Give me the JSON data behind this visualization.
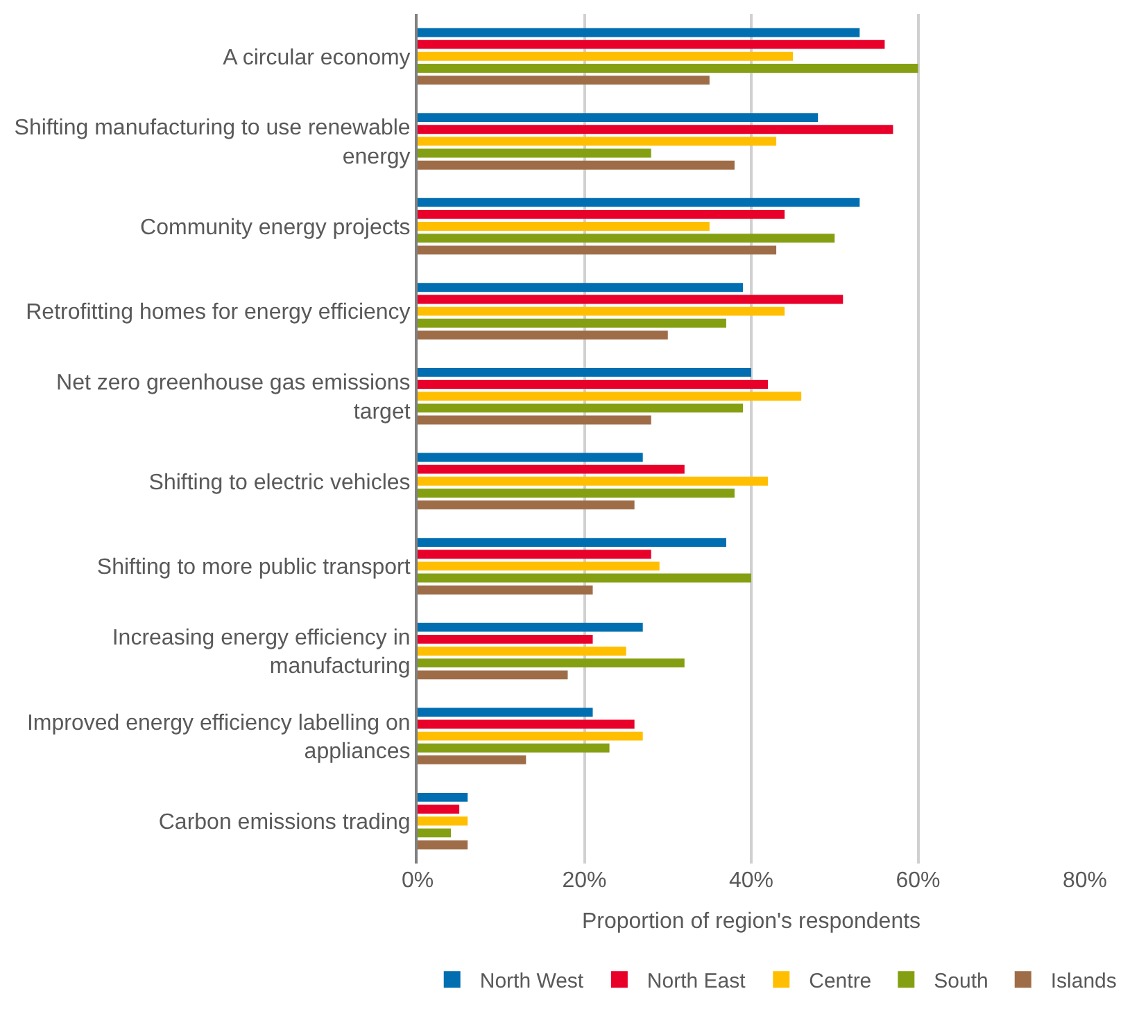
{
  "chart_data": {
    "type": "bar",
    "orientation": "horizontal",
    "xlabel": "Proportion of region's respondents",
    "categories": [
      "A circular economy",
      "Shifting manufacturing to use renewable\nenergy",
      "Community energy projects",
      "Retrofitting homes for energy efficiency",
      "Net zero greenhouse gas emissions\ntarget",
      "Shifting to electric vehicles",
      "Shifting to more public transport",
      "Increasing energy efficiency in\nmanufacturing",
      "Improved energy efficiency labelling on\nappliances",
      "Carbon emissions trading"
    ],
    "series": [
      {
        "name": "North West",
        "color": "#006eb0",
        "values": [
          53,
          48,
          53,
          39,
          40,
          27,
          37,
          27,
          21,
          6
        ]
      },
      {
        "name": "North East",
        "color": "#e8002a",
        "values": [
          56,
          57,
          44,
          51,
          42,
          32,
          28,
          21,
          26,
          5
        ]
      },
      {
        "name": "Centre",
        "color": "#ffbf00",
        "values": [
          45,
          43,
          35,
          44,
          46,
          42,
          29,
          25,
          27,
          6
        ]
      },
      {
        "name": "South",
        "color": "#84a012",
        "values": [
          60,
          28,
          50,
          37,
          39,
          38,
          40,
          32,
          23,
          4
        ]
      },
      {
        "name": "Islands",
        "color": "#9e6d48",
        "values": [
          35,
          38,
          43,
          30,
          28,
          26,
          21,
          18,
          13,
          6
        ]
      }
    ],
    "xlim": [
      0,
      80
    ],
    "xticks": [
      {
        "value": 0,
        "label": "0%"
      },
      {
        "value": 20,
        "label": "20%"
      },
      {
        "value": 40,
        "label": "40%"
      },
      {
        "value": 60,
        "label": "60%"
      },
      {
        "value": 80,
        "label": "80%"
      }
    ],
    "grid": "x",
    "legend": "bottom"
  }
}
